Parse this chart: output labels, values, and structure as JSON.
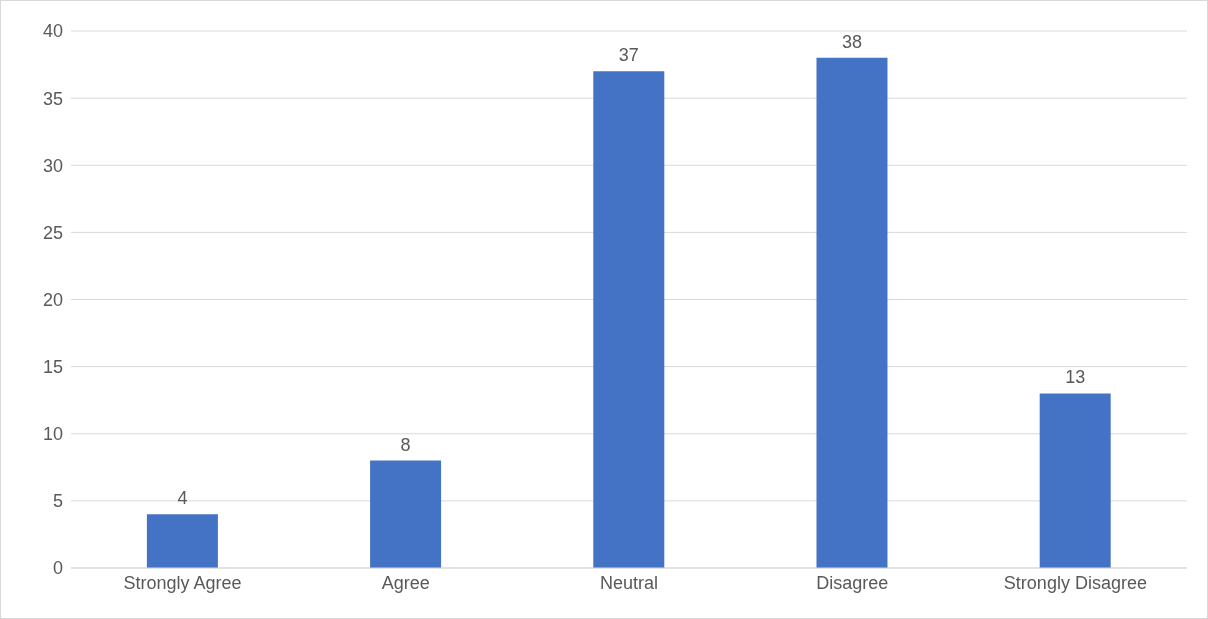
{
  "chart_data": {
    "type": "bar",
    "categories": [
      "Strongly Agree",
      "Agree",
      "Neutral",
      "Disagree",
      "Strongly Disagree"
    ],
    "values": [
      4,
      8,
      37,
      38,
      13
    ],
    "color": "#4472c4",
    "ylim": [
      0,
      40
    ],
    "yticks": [
      0,
      5,
      10,
      15,
      20,
      25,
      30,
      35,
      40
    ],
    "grid": "y",
    "data_labels": true
  }
}
